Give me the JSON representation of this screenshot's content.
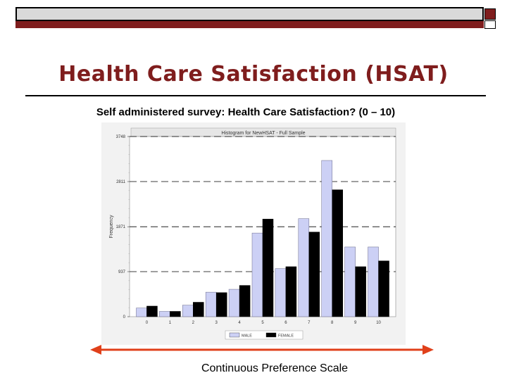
{
  "slide": {
    "title": "Health Care Satisfaction (HSAT)",
    "subtitle": "Self administered survey: Health Care Satisfaction? (0 – 10)",
    "caption": "Continuous Preference Scale",
    "accent_color": "#7f1d1d",
    "arrow_color": "#e0401a"
  },
  "chart_data": {
    "type": "bar",
    "title": "Histogram for NewHSAT - Full Sample",
    "xlabel": "",
    "ylabel": "Frequency",
    "categories": [
      "0",
      "1",
      "2",
      "3",
      "4",
      "5",
      "6",
      "7",
      "8",
      "9",
      "10"
    ],
    "series": [
      {
        "name": "MALE",
        "color": "#ccd0f5",
        "values": [
          180,
          110,
          240,
          510,
          570,
          1740,
          1000,
          2040,
          3250,
          1450,
          1450
        ]
      },
      {
        "name": "FEMALE",
        "color": "#000000",
        "values": [
          220,
          110,
          300,
          500,
          650,
          2030,
          1040,
          1760,
          2640,
          1040,
          1160
        ]
      }
    ],
    "yticks": [
      0,
      937,
      1871,
      2811,
      3748
    ],
    "ylim": [
      0,
      3748
    ],
    "grid": "dashed horizontal",
    "legend": "bottom-center"
  }
}
